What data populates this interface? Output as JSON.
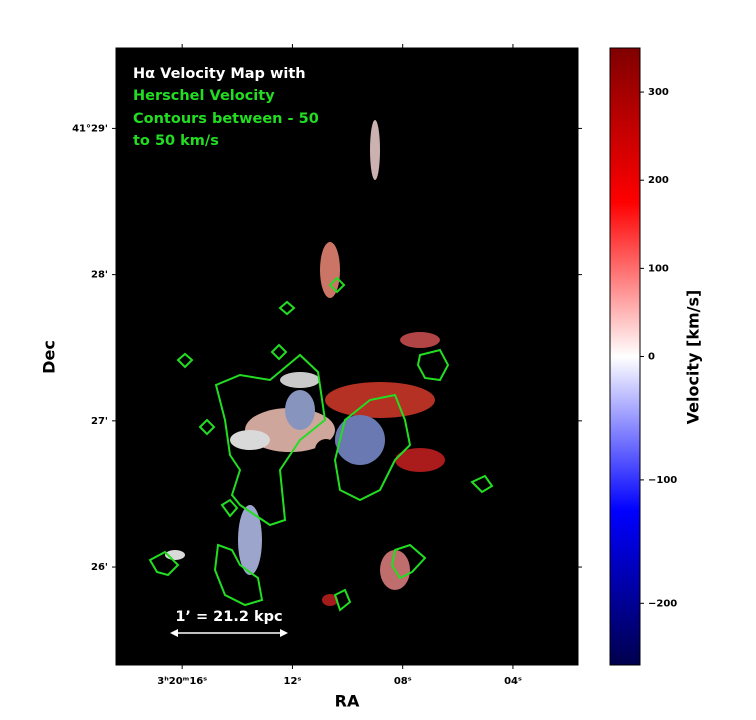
{
  "chart_data": {
    "type": "image",
    "annotation": [
      "Hα Velocity Map with",
      "Herschel Velocity",
      "Contours between - 50",
      "to 50 km/s"
    ],
    "scale_bar": "1’ = 21.2 kpc",
    "xlabel": "RA",
    "ylabel": "Dec",
    "xlim": [
      18.4,
      1.64
    ],
    "xticks": [
      {
        "value": 16,
        "label": "3ʰ20ᵐ16ˢ"
      },
      {
        "value": 12,
        "label": "12ˢ"
      },
      {
        "value": 8,
        "label": "08ˢ"
      },
      {
        "value": 4,
        "label": "04ˢ"
      }
    ],
    "ylim": [
      25.33,
      29.55
    ],
    "yticks": [
      {
        "value": 29,
        "label": "41°29'"
      },
      {
        "value": 28,
        "label": "28'"
      },
      {
        "value": 27,
        "label": "27'"
      },
      {
        "value": 26,
        "label": "26'"
      }
    ],
    "colorbar_label": "Velocity [km/s]",
    "clim": [
      -250,
      350
    ],
    "norm_center": 0,
    "cticks": [
      {
        "value": 300,
        "label": "300"
      },
      {
        "value": 200,
        "label": "200"
      },
      {
        "value": 100,
        "label": "100"
      },
      {
        "value": 0,
        "label": "0"
      },
      {
        "value": -100,
        "label": "−100"
      },
      {
        "value": -200,
        "label": "−200"
      }
    ]
  }
}
